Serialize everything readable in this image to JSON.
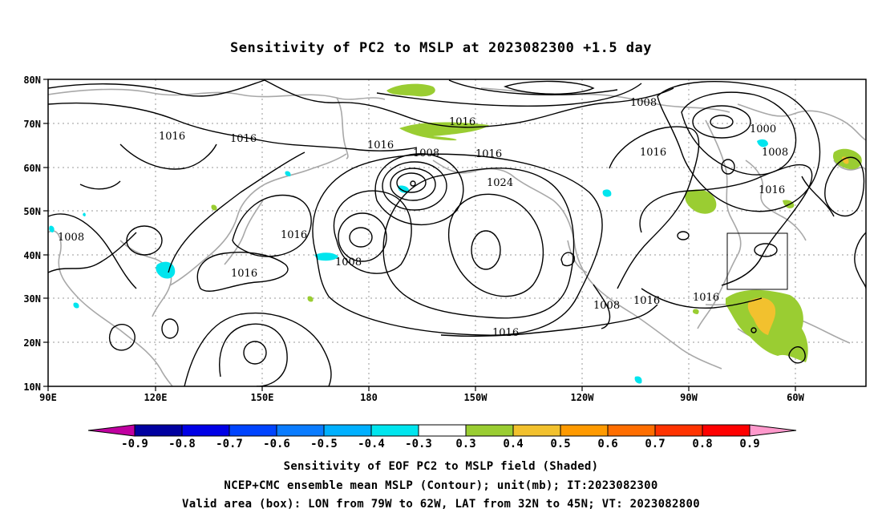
{
  "title": "Sensitivity of PC2 to MSLP at 2023082300 +1.5 day",
  "map": {
    "lat_ticks": [
      "80N",
      "70N",
      "60N",
      "50N",
      "40N",
      "30N",
      "20N",
      "10N"
    ],
    "lon_ticks": [
      "90E",
      "120E",
      "150E",
      "180",
      "150W",
      "120W",
      "90W",
      "60W"
    ],
    "contour_labels": [
      "1016",
      "1016",
      "1016",
      "1008",
      "1016",
      "1016",
      "1024",
      "1008",
      "1000",
      "1008",
      "1016",
      "1016",
      "1008",
      "1016",
      "1008",
      "1016",
      "1016",
      "1016"
    ],
    "valid_box": {
      "lon": [
        "79W",
        "62W"
      ],
      "lat": [
        "32N",
        "45N"
      ]
    },
    "colors": {
      "contour": "#000000",
      "coast": "#a8a8a8",
      "green": "#9acd32",
      "yellow": "#f2c12e",
      "cyan": "#00e5ee"
    }
  },
  "colorbar": {
    "labels": [
      "-0.9",
      "-0.8",
      "-0.7",
      "-0.6",
      "-0.5",
      "-0.4",
      "-0.3",
      "0.3",
      "0.4",
      "0.5",
      "0.6",
      "0.7",
      "0.8",
      "0.9"
    ],
    "colors": [
      "#0000a0",
      "#0000e6",
      "#0044ff",
      "#0a7cff",
      "#00b0ff",
      "#00e5ee",
      "#ffffff",
      "#9acd32",
      "#f2c12e",
      "#ff9a00",
      "#ff6e00",
      "#ff3300",
      "#ff0000"
    ],
    "left_arrow_color": "#c000a0",
    "right_arrow_color": "#ff99cc"
  },
  "captions": [
    "Sensitivity of EOF PC2 to MSLP field (Shaded)",
    "NCEP+CMC ensemble mean MSLP (Contour); unit(mb); IT:2023082300",
    "Valid area (box): LON from 79W to 62W, LAT from 32N to 45N; VT: 2023082800"
  ]
}
